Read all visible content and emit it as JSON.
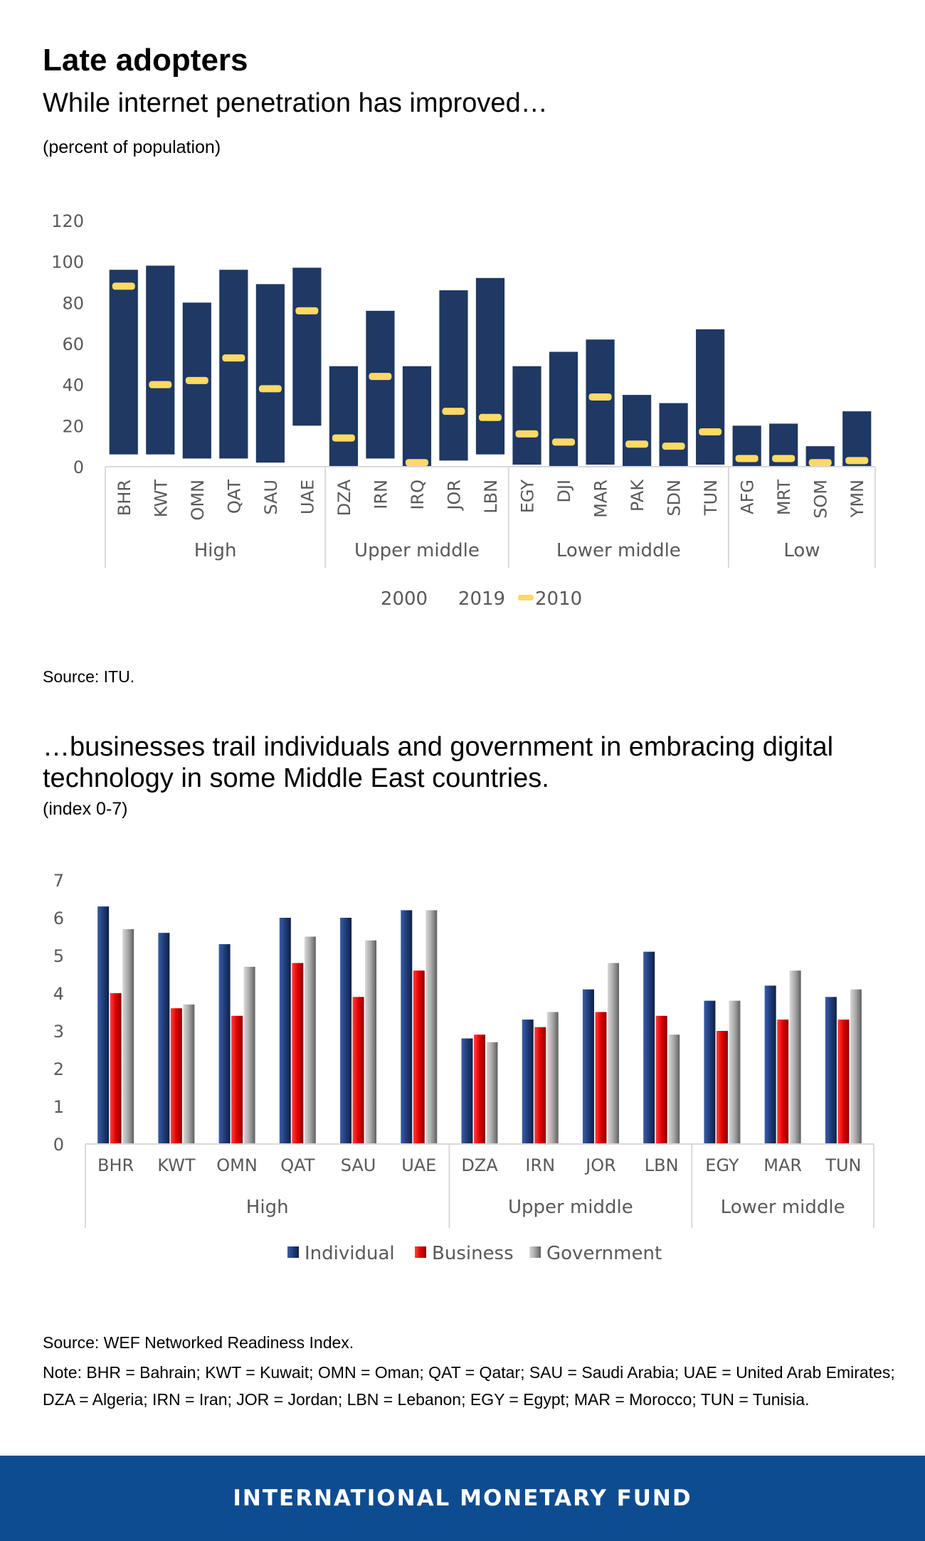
{
  "title": "Late adopters",
  "chart1": {
    "subtitle": "While internet penetration has improved…",
    "unit": "(percent of population)",
    "source": "Source: ITU.",
    "colors": {
      "bar": "#1f3864",
      "marker": "#ffd966"
    },
    "chart_data": {
      "type": "bar",
      "title": "While internet penetration has improved…",
      "ylabel": "(percent of population)",
      "ylim": [
        0,
        120
      ],
      "yticks": [
        "0",
        "20",
        "40",
        "60",
        "80",
        "100",
        "120"
      ],
      "categories": [
        "BHR",
        "KWT",
        "OMN",
        "QAT",
        "SAU",
        "UAE",
        "DZA",
        "IRN",
        "IRQ",
        "JOR",
        "LBN",
        "EGY",
        "DJI",
        "MAR",
        "PAK",
        "SDN",
        "TUN",
        "AFG",
        "MRT",
        "SOM",
        "YMN"
      ],
      "groups": [
        {
          "name": "High",
          "count": 6
        },
        {
          "name": "Upper middle",
          "count": 5
        },
        {
          "name": "Lower middle",
          "count": 6
        },
        {
          "name": "Low",
          "count": 4
        }
      ],
      "series": [
        {
          "name": "2000",
          "values": [
            6,
            6,
            4,
            4,
            2,
            20,
            0,
            4,
            0,
            3,
            6,
            1,
            0,
            1,
            0,
            0,
            1,
            0,
            0,
            0,
            0
          ]
        },
        {
          "name": "2019",
          "values": [
            96,
            98,
            80,
            96,
            89,
            97,
            49,
            76,
            49,
            86,
            92,
            49,
            56,
            62,
            35,
            31,
            67,
            20,
            21,
            10,
            27
          ]
        },
        {
          "name": "2010",
          "values": [
            88,
            40,
            42,
            53,
            38,
            76,
            14,
            44,
            2,
            27,
            24,
            16,
            12,
            34,
            11,
            10,
            17,
            4,
            4,
            2,
            3
          ]
        }
      ],
      "legend": [
        "2000",
        "2019",
        "2010"
      ]
    }
  },
  "chart2": {
    "subtitle": "…businesses trail individuals and government in embracing digital technology in some Middle East countries.",
    "unit": "(index 0-7)",
    "source": "Source: WEF Networked Readiness Index.",
    "note": "Note: BHR = Bahrain; KWT = Kuwait; OMN = Oman; QAT = Qatar; SAU = Saudi Arabia; UAE = United Arab Emirates; DZA = Algeria; IRN = Iran; JOR = Jordan; LBN = Lebanon; EGY = Egypt; MAR = Morocco; TUN = Tunisia.",
    "colors": {
      "Individual": "#1f3d7a",
      "Business": "#e00000",
      "Government": "#a6a6a6"
    },
    "chart_data": {
      "type": "bar",
      "title": "…businesses trail individuals and government in embracing digital technology in some Middle East countries.",
      "ylabel": "(index 0-7)",
      "ylim": [
        0,
        7
      ],
      "yticks": [
        "0",
        "1",
        "2",
        "3",
        "4",
        "5",
        "6",
        "7"
      ],
      "categories": [
        "BHR",
        "KWT",
        "OMN",
        "QAT",
        "SAU",
        "UAE",
        "DZA",
        "IRN",
        "JOR",
        "LBN",
        "EGY",
        "MAR",
        "TUN"
      ],
      "groups": [
        {
          "name": "High",
          "count": 6
        },
        {
          "name": "Upper middle",
          "count": 4
        },
        {
          "name": "Lower middle",
          "count": 3
        }
      ],
      "series": [
        {
          "name": "Individual",
          "values": [
            6.3,
            5.6,
            5.3,
            6.0,
            6.0,
            6.2,
            2.8,
            3.3,
            4.1,
            5.1,
            3.8,
            4.2,
            3.9
          ]
        },
        {
          "name": "Business",
          "values": [
            4.0,
            3.6,
            3.4,
            4.8,
            3.9,
            4.6,
            2.9,
            3.1,
            3.5,
            3.4,
            3.0,
            3.3,
            3.3
          ]
        },
        {
          "name": "Government",
          "values": [
            5.7,
            3.7,
            4.7,
            5.5,
            5.4,
            6.2,
            2.7,
            3.5,
            4.8,
            2.9,
            3.8,
            4.6,
            4.1
          ]
        }
      ],
      "legend": [
        "Individual",
        "Business",
        "Government"
      ]
    }
  },
  "footer": "INTERNATIONAL MONETARY FUND"
}
